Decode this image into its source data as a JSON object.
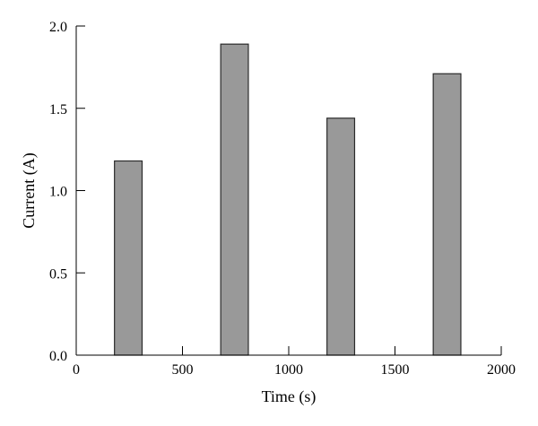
{
  "chart_data": {
    "type": "bar",
    "xlabel": "Time (s)",
    "ylabel": "Current (A)",
    "xlim": [
      0,
      2000
    ],
    "ylim": [
      0,
      2.0
    ],
    "xticks": [
      0,
      500,
      1000,
      1500,
      2000
    ],
    "xtick_labels": [
      "0",
      "500",
      "1000",
      "1500",
      "2000"
    ],
    "yticks": [
      0,
      0.5,
      1.0,
      1.5,
      2.0
    ],
    "ytick_labels": [
      "0.0",
      "0.5",
      "1.0",
      "1.5",
      "2.0"
    ],
    "bars": [
      {
        "x_start": 180,
        "x_end": 310,
        "value": 1.18
      },
      {
        "x_start": 680,
        "x_end": 810,
        "value": 1.89
      },
      {
        "x_start": 1180,
        "x_end": 1310,
        "value": 1.44
      },
      {
        "x_start": 1680,
        "x_end": 1810,
        "value": 1.71
      }
    ],
    "bar_color": "#999999",
    "grid": false
  }
}
